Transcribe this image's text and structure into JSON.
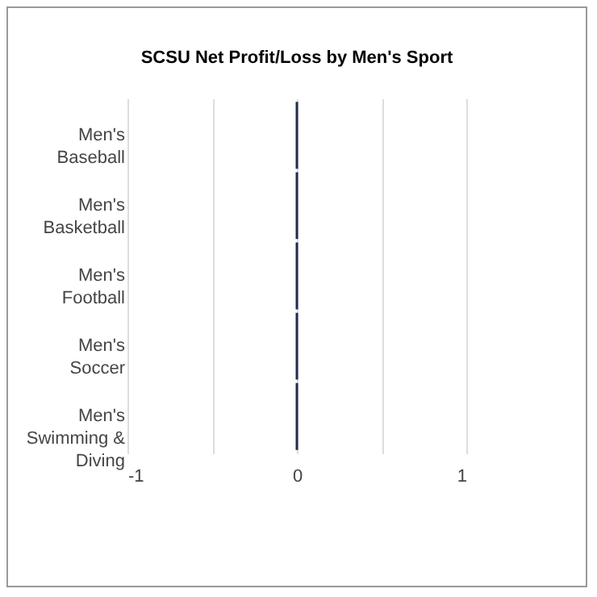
{
  "chart_data": {
    "type": "bar",
    "orientation": "horizontal",
    "title": "SCSU Net Profit/Loss by Men's Sport",
    "categories": [
      "Men's Baseball",
      "Men's Basketball",
      "Men's Football",
      "Men's Soccer",
      "Men's Swimming & Diving"
    ],
    "values": [
      0,
      0,
      0,
      0,
      0
    ],
    "color": "#1f2f4a",
    "xlim": [
      -1,
      1
    ],
    "xticks": [
      -1,
      {
        "value": -0.5,
        "label": null
      },
      0,
      {
        "value": 0.5,
        "label": null
      },
      1
    ],
    "grid": "x"
  }
}
